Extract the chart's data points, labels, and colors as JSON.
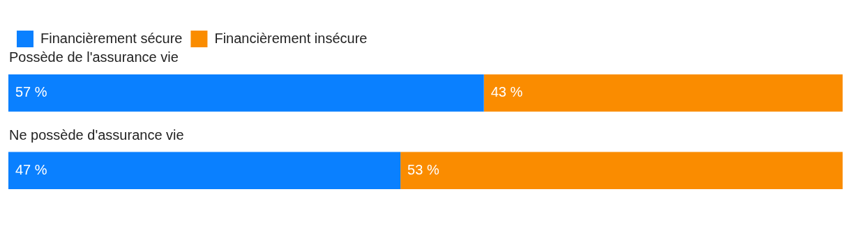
{
  "chart_data": {
    "type": "bar",
    "orientation": "horizontal",
    "stacked": true,
    "legend": "top left",
    "categories": [
      "Possède de l'assurance vie",
      "Ne possède d'assurance vie"
    ],
    "series": [
      {
        "name": "Financièrement sécure",
        "color": "#0a80ff",
        "values": [
          57,
          47
        ],
        "value_labels": [
          "57 %",
          "47 %"
        ]
      },
      {
        "name": "Financièrement insécure",
        "color": "#fa8c00",
        "values": [
          43,
          53
        ],
        "value_labels": [
          "43 %",
          "53 %"
        ]
      }
    ]
  }
}
